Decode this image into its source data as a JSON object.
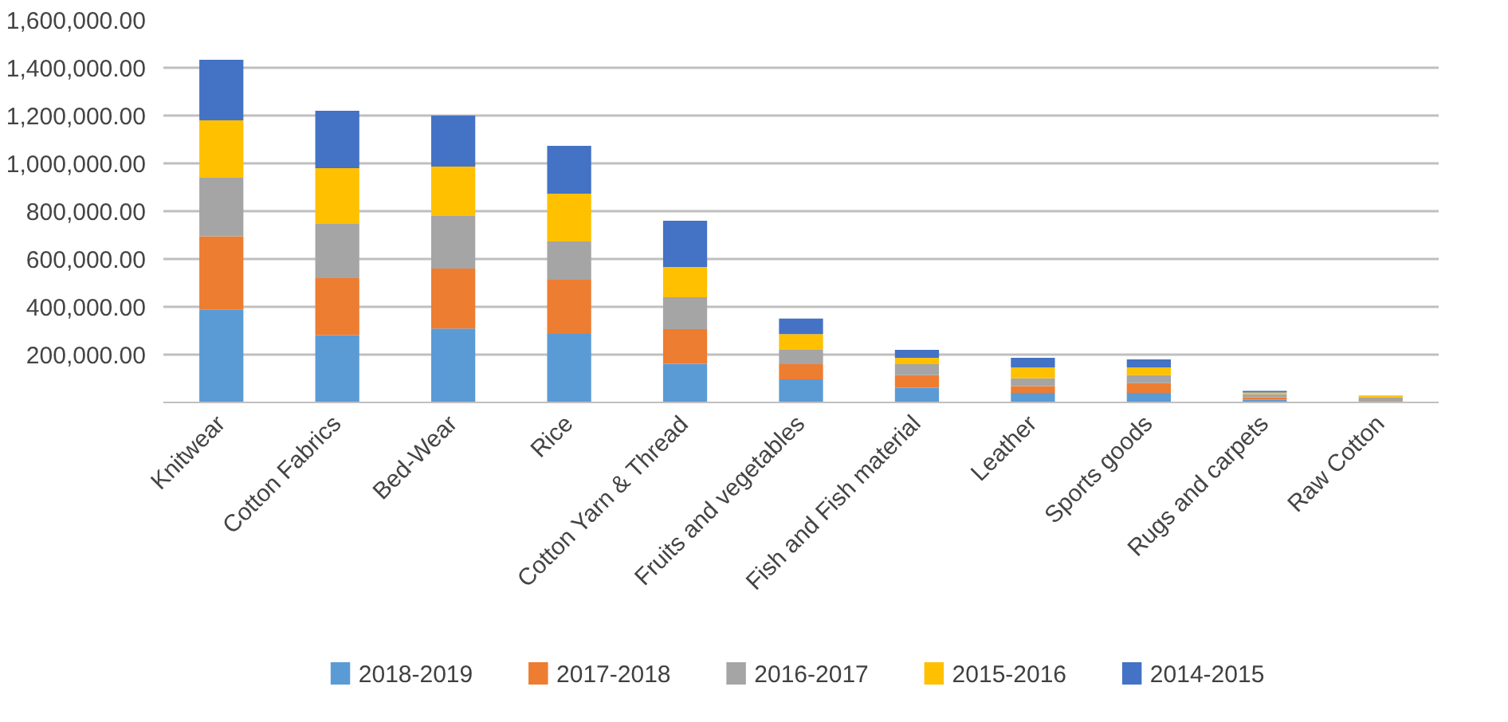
{
  "chart_data": {
    "type": "bar",
    "stacked": true,
    "categories": [
      "Knitwear",
      "Cotton Fabrics",
      "Bed-Wear",
      "Rice",
      "Cotton Yarn & Thread",
      "Fruits and vegetables",
      "Fish and Fish material",
      "Leather",
      "Sports goods",
      "Rugs and carpets",
      "Raw Cotton"
    ],
    "series": [
      {
        "name": "2018-2019",
        "color": "#5b9bd5",
        "values": [
          389000,
          282000,
          309000,
          287000,
          162000,
          97000,
          62000,
          40000,
          40000,
          11000,
          4000
        ]
      },
      {
        "name": "2017-2018",
        "color": "#ed7d31",
        "values": [
          306000,
          238000,
          251000,
          226000,
          145000,
          63000,
          52000,
          28000,
          41000,
          11000,
          3000
        ]
      },
      {
        "name": "2016-2017",
        "color": "#a5a5a5",
        "values": [
          245000,
          227000,
          220000,
          160000,
          133000,
          60000,
          46000,
          33000,
          33000,
          13000,
          15000
        ]
      },
      {
        "name": "2015-2016",
        "color": "#ffc000",
        "values": [
          240000,
          233000,
          207000,
          200000,
          127000,
          66000,
          27000,
          46000,
          33000,
          7000,
          7000
        ]
      },
      {
        "name": "2014-2015",
        "color": "#4472c4",
        "values": [
          253000,
          240000,
          213000,
          200000,
          193000,
          65000,
          33000,
          40000,
          33000,
          6000,
          0
        ]
      }
    ],
    "ylim": [
      0,
      1600000
    ],
    "yticks": [
      {
        "value": 200000,
        "label": "200,000.00"
      },
      {
        "value": 400000,
        "label": "400,000.00"
      },
      {
        "value": 600000,
        "label": "600,000.00"
      },
      {
        "value": 800000,
        "label": "800,000.00"
      },
      {
        "value": 1000000,
        "label": "1,000,000.00"
      },
      {
        "value": 1200000,
        "label": "1,200,000.00"
      },
      {
        "value": 1400000,
        "label": "1,400,000.00"
      },
      {
        "value": 1600000,
        "label": "1,600,000.00"
      }
    ],
    "grid": "y",
    "legend": "bottom"
  }
}
